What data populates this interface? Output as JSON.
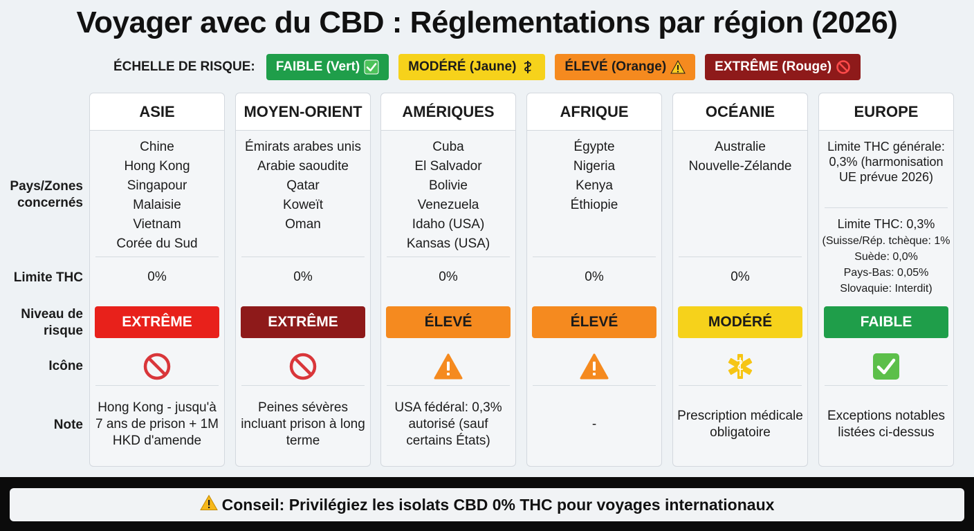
{
  "title": "Voyager avec du CBD : Réglementations par région (2026)",
  "legend": {
    "label": "ÉCHELLE DE RISQUE:",
    "items": [
      {
        "text": "FAIBLE (Vert)",
        "icon": "check-icon",
        "bg": "#1f9e4a",
        "fg": "#ffffff"
      },
      {
        "text": "MODÉRÉ (Jaune)",
        "icon": "medical-icon",
        "bg": "#f6d21b",
        "fg": "#1b1b1b"
      },
      {
        "text": "ÉLEVÉ (Orange)",
        "icon": "warning-icon",
        "bg": "#f58a1f",
        "fg": "#1b1b1b"
      },
      {
        "text": "EXTRÊME (Rouge)",
        "icon": "prohibited-icon",
        "bg": "#8e1a1a",
        "fg": "#ffffff"
      }
    ]
  },
  "row_labels": {
    "countries": "Pays/Zones concernés",
    "thc": "Limite THC",
    "risk": "Niveau de risque",
    "icon": "Icône",
    "note": "Note"
  },
  "regions": [
    {
      "name": "ASIE",
      "countries": [
        "Chine",
        "Hong Kong",
        "Singapour",
        "Malaisie",
        "Vietnam",
        "Corée du Sud"
      ],
      "thc": "0%",
      "risk": "EXTRÊME",
      "risk_bg": "#e8211b",
      "risk_fg": "#ffffff",
      "icon": "prohibited-icon",
      "note": "Hong Kong - jusqu'à 7 ans de prison + 1M HKD d'amende"
    },
    {
      "name": "MOYEN-ORIENT",
      "countries": [
        "Émirats arabes unis",
        "Arabie saoudite",
        "Qatar",
        "Koweït",
        "Oman"
      ],
      "thc": "0%",
      "risk": "EXTRÊME",
      "risk_bg": "#8e1a1a",
      "risk_fg": "#ffffff",
      "icon": "prohibited-icon",
      "note": "Peines sévères incluant prison à long terme"
    },
    {
      "name": "AMÉRIQUES",
      "countries": [
        "Cuba",
        "El Salvador",
        "Bolivie",
        "Venezuela",
        "Idaho (USA)",
        "Kansas (USA)"
      ],
      "thc": "0%",
      "risk": "ÉLEVÉ",
      "risk_bg": "#f58a1f",
      "risk_fg": "#1b1b1b",
      "icon": "warning-icon",
      "note": "USA fédéral: 0,3% autorisé (sauf certains États)"
    },
    {
      "name": "AFRIQUE",
      "countries": [
        "Égypte",
        "Nigeria",
        "Kenya",
        "Éthiopie"
      ],
      "thc": "0%",
      "risk": "ÉLEVÉ",
      "risk_bg": "#f58a1f",
      "risk_fg": "#1b1b1b",
      "icon": "warning-icon",
      "note": "-"
    },
    {
      "name": "OCÉANIE",
      "countries": [
        "Australie",
        "Nouvelle-Zélande"
      ],
      "thc": "0%",
      "risk": "MODÉRÉ",
      "risk_bg": "#f6d21b",
      "risk_fg": "#1b1b1b",
      "icon": "medical-icon",
      "note": "Prescription médicale obligatoire"
    },
    {
      "name": "EUROPE",
      "countries": [],
      "europe_general": "Limite THC générale: 0,3% (harmonisation UE prévue 2026)",
      "europe_limit": "Limite THC: 0,3%",
      "europe_details": [
        "(Suisse/Rép. tchèque: 1%",
        "Suède: 0,0%",
        "Pays-Bas: 0,05%",
        "Slovaquie: Interdit)"
      ],
      "thc": "",
      "risk": "FAIBLE",
      "risk_bg": "#1f9e4a",
      "risk_fg": "#ffffff",
      "icon": "check-icon",
      "note": "Exceptions notables listées ci-dessus"
    }
  ],
  "footer": {
    "icon": "warning-icon",
    "text": "Conseil: Privilégiez les isolats CBD 0% THC pour voyages internationaux"
  }
}
